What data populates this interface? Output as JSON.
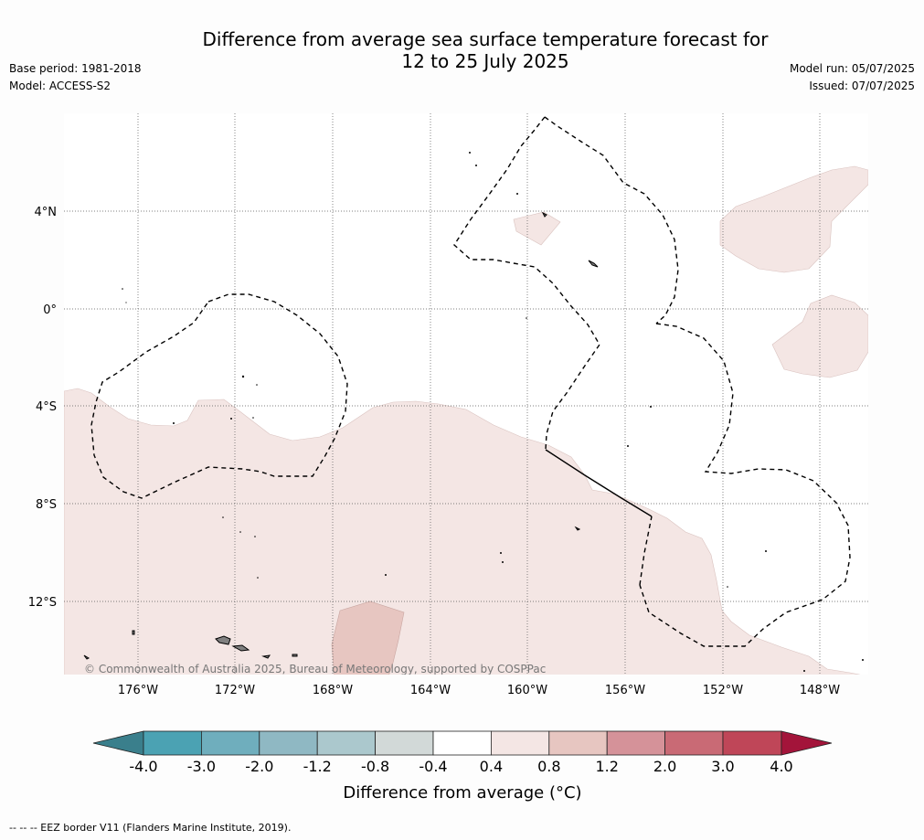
{
  "header": {
    "title_line1": "Difference from average sea surface temperature forecast for",
    "title_line2": "12 to 25 July 2025",
    "base_period": "Base period: 1981-2018",
    "model": "Model: ACCESS-S2",
    "model_run": "Model run: 05/07/2025",
    "issued": "Issued: 07/07/2025"
  },
  "map": {
    "latitude_labels": [
      "4°N",
      "0°",
      "4°S",
      "8°S",
      "12°S"
    ],
    "longitude_labels": [
      "176°W",
      "172°W",
      "168°W",
      "164°W",
      "160°W",
      "156°W",
      "152°W",
      "148°W"
    ],
    "copyright": "© Commonwealth of Australia 2025, Bureau of Meteorology, supported by COSPPac",
    "anomaly_fill_colors": {
      "band_0.4_0.8": "#f4e6e4",
      "band_0.8_1.2": "#e7c6c1"
    },
    "eez_line_color": "#000000",
    "land_color": "#808080"
  },
  "colorbar": {
    "ticks": [
      "-4.0",
      "-3.0",
      "-2.0",
      "-1.2",
      "-0.8",
      "-0.4",
      "0.4",
      "0.8",
      "1.2",
      "2.0",
      "3.0",
      "4.0"
    ],
    "colors": [
      "#3a7f8c",
      "#4ba2b3",
      "#6faebd",
      "#8fb8c3",
      "#abc8cd",
      "#d2d9d8",
      "#ffffff",
      "#f4e6e4",
      "#e7c6c1",
      "#d59299",
      "#c96a75",
      "#bf4658",
      "#a3143a"
    ],
    "label": "Difference from average (°C)"
  },
  "footer": {
    "eez_legend": "--  --  -- EEZ border V11 (Flanders Marine Institute, 2019)."
  }
}
